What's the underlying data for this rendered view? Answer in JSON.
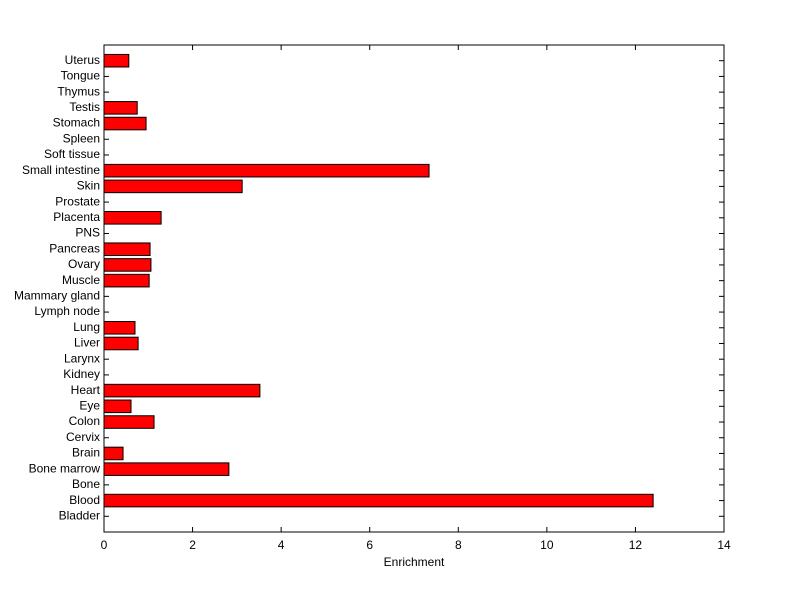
{
  "chart_data": {
    "type": "barh",
    "xlabel": "Enrichment",
    "categories": [
      "Bladder",
      "Blood",
      "Bone",
      "Bone marrow",
      "Brain",
      "Cervix",
      "Colon",
      "Eye",
      "Heart",
      "Kidney",
      "Larynx",
      "Liver",
      "Lung",
      "Lymph node",
      "Mammary gland",
      "Muscle",
      "Ovary",
      "Pancreas",
      "PNS",
      "Placenta",
      "Prostate",
      "Skin",
      "Small intestine",
      "Soft tissue",
      "Spleen",
      "Stomach",
      "Testis",
      "Thymus",
      "Tongue",
      "Uterus"
    ],
    "values": [
      0,
      12.4,
      0,
      2.82,
      0.43,
      0,
      1.13,
      0.61,
      3.52,
      0,
      0,
      0.77,
      0.7,
      0,
      0,
      1.02,
      1.06,
      1.04,
      0,
      1.29,
      0,
      3.12,
      7.34,
      0,
      0,
      0.95,
      0.75,
      0,
      0,
      0.56
    ],
    "color": "#ff0000",
    "xlim": [
      0,
      14
    ],
    "xticks": [
      0,
      2,
      4,
      6,
      8,
      10,
      12,
      14
    ]
  }
}
